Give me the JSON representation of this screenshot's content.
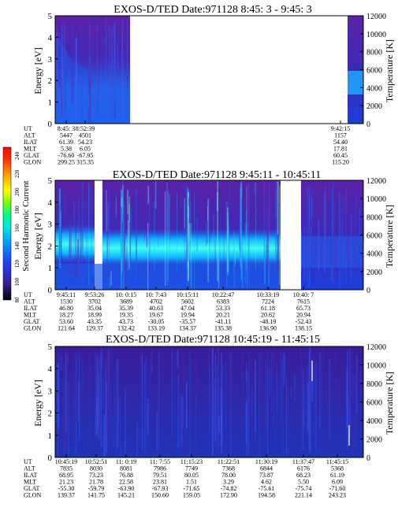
{
  "colorbar": {
    "label": "Second Harmonic Current",
    "ticks": [
      "240",
      "220",
      "200",
      "180",
      "160",
      "140",
      "120",
      "100",
      "80"
    ],
    "colors": [
      "#000000",
      "#3a1a8c",
      "#2040ff",
      "#00a0ff",
      "#00e8e0",
      "#00ff80",
      "#80ff00",
      "#ffff00",
      "#ffa000",
      "#ff3000",
      "#ff0000"
    ]
  },
  "panels": [
    {
      "title": "EXOS-D/TED   Date:971128   8:45: 3 - 9:45: 3",
      "ylabel": "Energy [eV]",
      "y2label": "Temperature [K]",
      "yticks": [
        "0",
        "1",
        "2",
        "3",
        "4",
        "5"
      ],
      "y2ticks": [
        "0",
        "2000",
        "4000",
        "6000",
        "8000",
        "10000",
        "12000"
      ],
      "row_labels": [
        "UT",
        "ALT",
        "ILAT",
        "MLT",
        "GLAT",
        "GLON"
      ],
      "columns": [
        [
          "8:45: 3",
          "5447",
          "61.39",
          "5.38",
          "-76.60",
          "299.25"
        ],
        [
          "8:52:39",
          "4501",
          "54.23",
          "6.05",
          "-67.95",
          "315.35"
        ],
        [
          "9:42:15",
          "1157",
          "54.40",
          "17.81",
          "60.45",
          "115.20"
        ]
      ]
    },
    {
      "title": "EXOS-D/TED   Date:971128   9:45:11 - 10:45:11",
      "ylabel": "Energy [eV]",
      "y2label": "Temperature [K]",
      "yticks": [
        "0",
        "1",
        "2",
        "3",
        "4",
        "5"
      ],
      "y2ticks": [
        "0",
        "2000",
        "4000",
        "6000",
        "8000",
        "10000",
        "12000"
      ],
      "row_labels": [
        "UT",
        "ALT",
        "ILAT",
        "MLT",
        "GLAT",
        "GLON"
      ],
      "columns": [
        [
          "9:45:11",
          "1530",
          "46.80",
          "18.27",
          "53.60",
          "121.64"
        ],
        [
          "9:53:26",
          "3702",
          "35.04",
          "18.99",
          "43.35",
          "129.37"
        ],
        [
          "10: 0:15",
          "3689",
          "35.39",
          "19.35",
          "43.73",
          "132.42"
        ],
        [
          "10: 7:43",
          "4702",
          "40.63",
          "19.67",
          "-30.05",
          "133.19"
        ],
        [
          "10:15:11",
          "5602",
          "47.04",
          "19.94",
          "-35.57",
          "134.37"
        ],
        [
          "10:22:47",
          "6383",
          "53.33",
          "20.21",
          "-41.11",
          "135.38"
        ],
        [
          "10:33:19",
          "7224",
          "61.18",
          "20.62",
          "-48.19",
          "136.90"
        ],
        [
          "10:40: 7",
          "7615",
          "65.73",
          "20.94",
          "-52.43",
          "138.15"
        ]
      ]
    },
    {
      "title": "EXOS-D/TED   Date:971128   10:45:19 - 11:45:15",
      "ylabel": "Energy [eV]",
      "y2label": "Temperature [K]",
      "yticks": [
        "0",
        "1",
        "2",
        "3",
        "4",
        "5"
      ],
      "y2ticks": [
        "0",
        "2000",
        "4000",
        "6000",
        "8000",
        "10000",
        "12000"
      ],
      "row_labels": [
        "UT",
        "ALT",
        "ILAT",
        "MLT",
        "GLAT",
        "GLON"
      ],
      "columns": [
        [
          "10:45:19",
          "7835",
          "68.95",
          "21.23",
          "-55.30",
          "139.37"
        ],
        [
          "10:52:51",
          "8030",
          "73.23",
          "21.78",
          "-59.79",
          "141.75"
        ],
        [
          "11: 0:19",
          "8081",
          "76.88",
          "22.58",
          "-63.90",
          "145.21"
        ],
        [
          "11: 7:55",
          "7986",
          "79.51",
          "23.81",
          "-67.93",
          "150.60"
        ],
        [
          "11:15:23",
          "7749",
          "80.05",
          "1.51",
          "-71.65",
          "159.05"
        ],
        [
          "11:22:51",
          "7368",
          "78.00",
          "3.29",
          "-74.82",
          "172.90"
        ],
        [
          "11:30:19",
          "6844",
          "73.87",
          "4.62",
          "-75.61",
          "194.58"
        ],
        [
          "11:37:47",
          "6176",
          "68.23",
          "5.50",
          "-75.74",
          "221.14"
        ],
        [
          "11:45:15",
          "5368",
          "61.19",
          "6.09",
          "-71.60",
          "243.23"
        ]
      ]
    }
  ],
  "chart_data": [
    {
      "type": "heatmap",
      "title": "EXOS-D/TED   Date:971128   8:45: 3 - 9:45: 3",
      "ylabel": "Energy [eV]",
      "ylim": [
        0,
        5
      ],
      "y2label": "Temperature [K]",
      "y2lim": [
        0,
        12000
      ],
      "data_intervals_ut": [
        [
          "8:45:03",
          "8:57:30"
        ],
        [
          "9:42:15",
          "9:45:03"
        ]
      ],
      "low_energy_band_ev": [
        0,
        1.6
      ]
    },
    {
      "type": "heatmap",
      "title": "EXOS-D/TED   Date:971128   9:45:11 - 10:45:11",
      "ylabel": "Energy [eV]",
      "ylim": [
        0,
        5
      ],
      "y2label": "Temperature [K]",
      "y2lim": [
        0,
        12000
      ],
      "data_intervals_ut": [
        [
          "9:45:11",
          "9:52:20"
        ],
        [
          "9:53:10",
          "10:31:30"
        ],
        [
          "10:34:40",
          "10:45:11"
        ]
      ],
      "peak_band_ev": [
        1.5,
        2.5
      ],
      "colorbar_label": "Second Harmonic Current",
      "colorbar_range": [
        80,
        240
      ]
    },
    {
      "type": "heatmap",
      "title": "EXOS-D/TED   Date:971128   10:45:19 - 11:45:15",
      "ylabel": "Energy [eV]",
      "ylim": [
        0,
        5
      ],
      "y2label": "Temperature [K]",
      "y2lim": [
        0,
        12000
      ],
      "data_intervals_ut": [
        [
          "10:45:19",
          "11:45:15"
        ]
      ]
    }
  ]
}
